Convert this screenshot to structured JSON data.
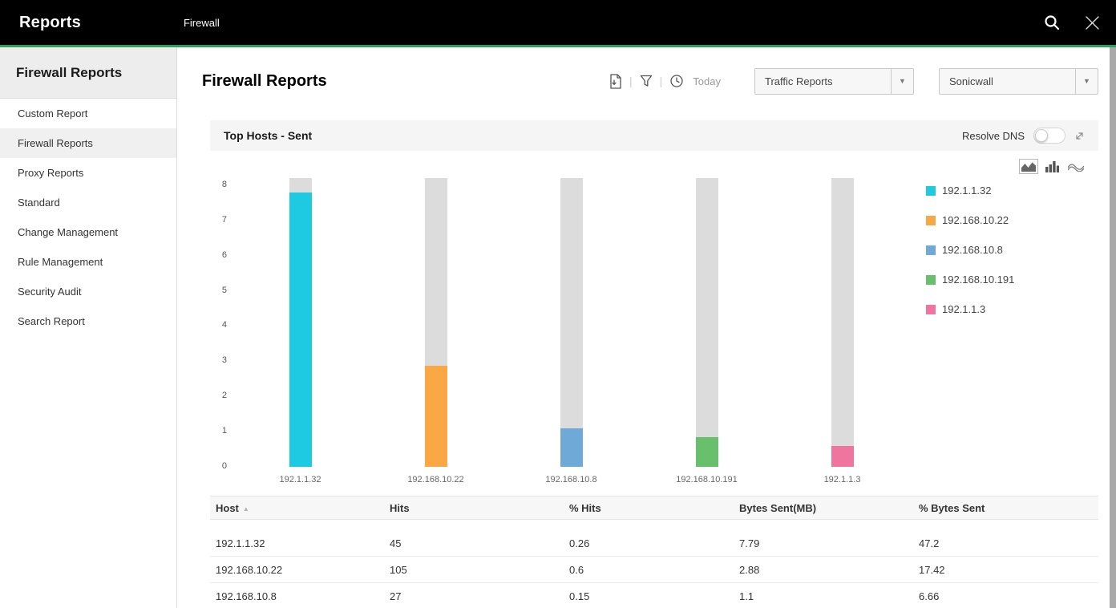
{
  "topbar": {
    "title": "Reports",
    "tab": "Firewall"
  },
  "sidebar": {
    "heading": "Firewall Reports",
    "items": [
      {
        "label": "Custom Report",
        "active": false
      },
      {
        "label": "Firewall Reports",
        "active": true
      },
      {
        "label": "Proxy Reports",
        "active": false
      },
      {
        "label": "Standard",
        "active": false
      },
      {
        "label": "Change Management",
        "active": false
      },
      {
        "label": "Rule Management",
        "active": false
      },
      {
        "label": "Security Audit",
        "active": false
      },
      {
        "label": "Search Report",
        "active": false
      }
    ]
  },
  "main": {
    "page_title": "Firewall Reports",
    "toolbar": {
      "period_label": "Today"
    },
    "filters": {
      "report_type": "Traffic Reports",
      "device": "Sonicwall"
    },
    "panel": {
      "title": "Top Hosts - Sent",
      "resolve_dns_label": "Resolve DNS",
      "resolve_dns_on": false
    }
  },
  "icons": {
    "topbar": [
      "search-icon",
      "close-icon"
    ],
    "toolbar": [
      "pdf-export-icon",
      "filter-icon",
      "schedule-clock-icon"
    ],
    "panel": [
      "expand-icon"
    ],
    "chart_type_options": [
      "area-chart-icon",
      "bar-chart-icon",
      "line-chart-icon"
    ],
    "chart_type_selected": "area-chart-icon"
  },
  "chart_data": {
    "type": "bar",
    "title": "Top Hosts - Sent",
    "categories": [
      "192.1.1.32",
      "192.168.10.22",
      "192.168.10.8",
      "192.168.10.191",
      "192.1.1.3"
    ],
    "values": [
      7.79,
      2.88,
      1.1,
      0.85,
      0.6
    ],
    "value_label": "Bytes Sent(MB)",
    "xlabel": "",
    "ylabel": "",
    "ylim": [
      0,
      8
    ],
    "axis_max": 8.2,
    "yticks": [
      0,
      1,
      2,
      3,
      4,
      5,
      6,
      7,
      8
    ],
    "grid": false,
    "legend_position": "right",
    "bar_colors": [
      "#1ec9e2",
      "#f9a845",
      "#6ea9d7",
      "#68bf6c",
      "#ef759f"
    ],
    "track_color": "#dcdcdc"
  },
  "table": {
    "columns": [
      "Host",
      "Hits",
      "% Hits",
      "Bytes Sent(MB)",
      "% Bytes Sent"
    ],
    "sort": {
      "column": "Host",
      "direction": "asc"
    },
    "rows": [
      [
        "192.1.1.32",
        "45",
        "0.26",
        "7.79",
        "47.2"
      ],
      [
        "192.168.10.22",
        "105",
        "0.6",
        "2.88",
        "17.42"
      ],
      [
        "192.168.10.8",
        "27",
        "0.15",
        "1.1",
        "6.66"
      ]
    ]
  }
}
